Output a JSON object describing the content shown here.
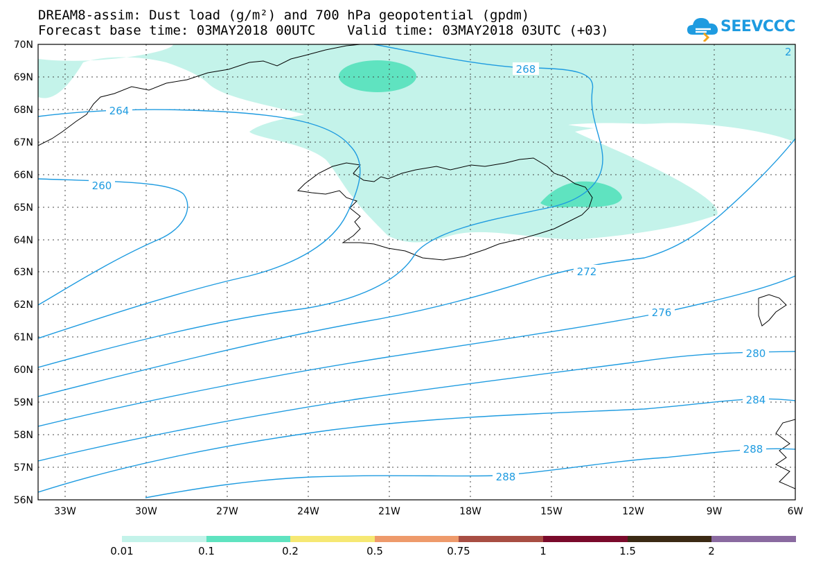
{
  "title": {
    "line1": "DREAM8-assim: Dust load (g/m²) and 700 hPa geopotential (gpdm)",
    "line2": "Forecast base time: 03MAY2018 00UTC    Valid time: 03MAY2018 03UTC (+03)"
  },
  "logo": {
    "text": "SEEVCCC",
    "color": "#1e9be0"
  },
  "axes": {
    "lon_range": [
      -34.0,
      -6.0
    ],
    "lat_range": [
      56.0,
      70.0
    ],
    "lon_ticks": [
      "33W",
      "30W",
      "27W",
      "24W",
      "21W",
      "18W",
      "15W",
      "12W",
      "9W",
      "6W"
    ],
    "lat_ticks": [
      "56N",
      "57N",
      "58N",
      "59N",
      "60N",
      "61N",
      "62N",
      "63N",
      "64N",
      "65N",
      "66N",
      "67N",
      "68N",
      "69N",
      "70N"
    ],
    "grid": "dotted"
  },
  "contours": {
    "color": "#1e9be0",
    "labels": [
      "260",
      "264",
      "268",
      "272",
      "276",
      "280",
      "284",
      "288",
      "288",
      "2"
    ]
  },
  "dust": {
    "colors": {
      "0.01": "#c4f3ea",
      "0.1": "#5fe3c0"
    }
  },
  "legend": {
    "bins": [
      {
        "color": "#c4f3ea"
      },
      {
        "color": "#5fe3c0"
      },
      {
        "color": "#f6e873"
      },
      {
        "color": "#ee9a6b"
      },
      {
        "color": "#a84e43"
      },
      {
        "color": "#7a0a2b"
      },
      {
        "color": "#3b2a14"
      },
      {
        "color": "#8a6aa0"
      }
    ],
    "labels": [
      "0.01",
      "0.1",
      "0.2",
      "0.5",
      "0.75",
      "1",
      "1.5",
      "2"
    ]
  }
}
